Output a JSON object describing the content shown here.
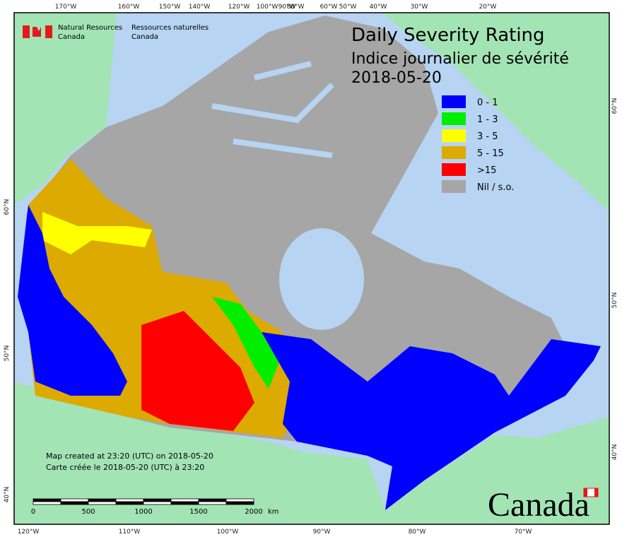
{
  "agency": {
    "en_line1": "Natural Resources",
    "en_line2": "Canada",
    "fr_line1": "Ressources naturelles",
    "fr_line2": "Canada"
  },
  "title": {
    "en": "Daily Severity Rating",
    "fr": "Indice journalier de sévérité",
    "date": "2018-05-20"
  },
  "legend": [
    {
      "label": "0 - 1",
      "color": "#0000ff"
    },
    {
      "label": "1 - 3",
      "color": "#00ee00"
    },
    {
      "label": "3 - 5",
      "color": "#ffff00"
    },
    {
      "label": "5 - 15",
      "color": "#dcaa00"
    },
    {
      "label": ">15",
      "color": "#ff0000"
    },
    {
      "label": "Nil / s.o.",
      "color": "#a6a6a6"
    }
  ],
  "graticule": {
    "top": [
      "170°W",
      "160°W",
      "150°W",
      "140°W",
      "120°W",
      "100°W",
      "90°W",
      "80°W",
      "60°W",
      "50°W",
      "40°W",
      "30°W",
      "20°W"
    ],
    "bottom": [
      "120°W",
      "110°W",
      "100°W",
      "90°W",
      "80°W",
      "70°W"
    ],
    "left": [
      "60°N",
      "50°N",
      "40°N"
    ],
    "right": [
      "60°N",
      "50°N",
      "40°N"
    ]
  },
  "scale": {
    "ticks": [
      "0",
      "500",
      "1000",
      "1500",
      "2000"
    ],
    "unit": "km"
  },
  "credits": [
    "Map created at 23:20 (UTC) on 2018-05-20",
    "Carte créée le 2018-05-20 (UTC) à 23:20"
  ],
  "wordmark": "Canada"
}
